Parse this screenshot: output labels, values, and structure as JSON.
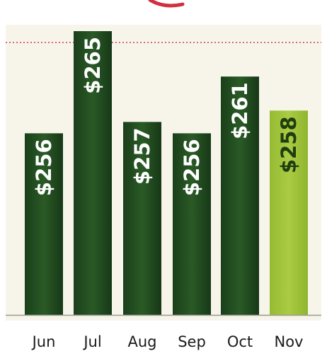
{
  "chart_data": {
    "type": "bar",
    "title": "",
    "xlabel": "",
    "ylabel": "",
    "categories": [
      "Jun",
      "Jul",
      "Aug",
      "Sep",
      "Oct",
      "Nov"
    ],
    "values": [
      256,
      265,
      257,
      256,
      261,
      258
    ],
    "value_labels": [
      "$256",
      "$265",
      "$257",
      "$256",
      "$261",
      "$258"
    ],
    "ylim": [
      240,
      265
    ],
    "reference_line": {
      "value": 264,
      "style": "dotted",
      "color": "#d2495f"
    },
    "grid": false,
    "legend": "none",
    "colors": {
      "bar": "#1f4a1f",
      "highlight_bar": "#a2c43c",
      "highlight_category": "Nov",
      "bar_label": "#ffffff",
      "highlight_label": "#1f3d10",
      "plot_background": "#f7f5ea",
      "baseline": "#9a9a9a",
      "title_fragment": "#d03040"
    }
  }
}
